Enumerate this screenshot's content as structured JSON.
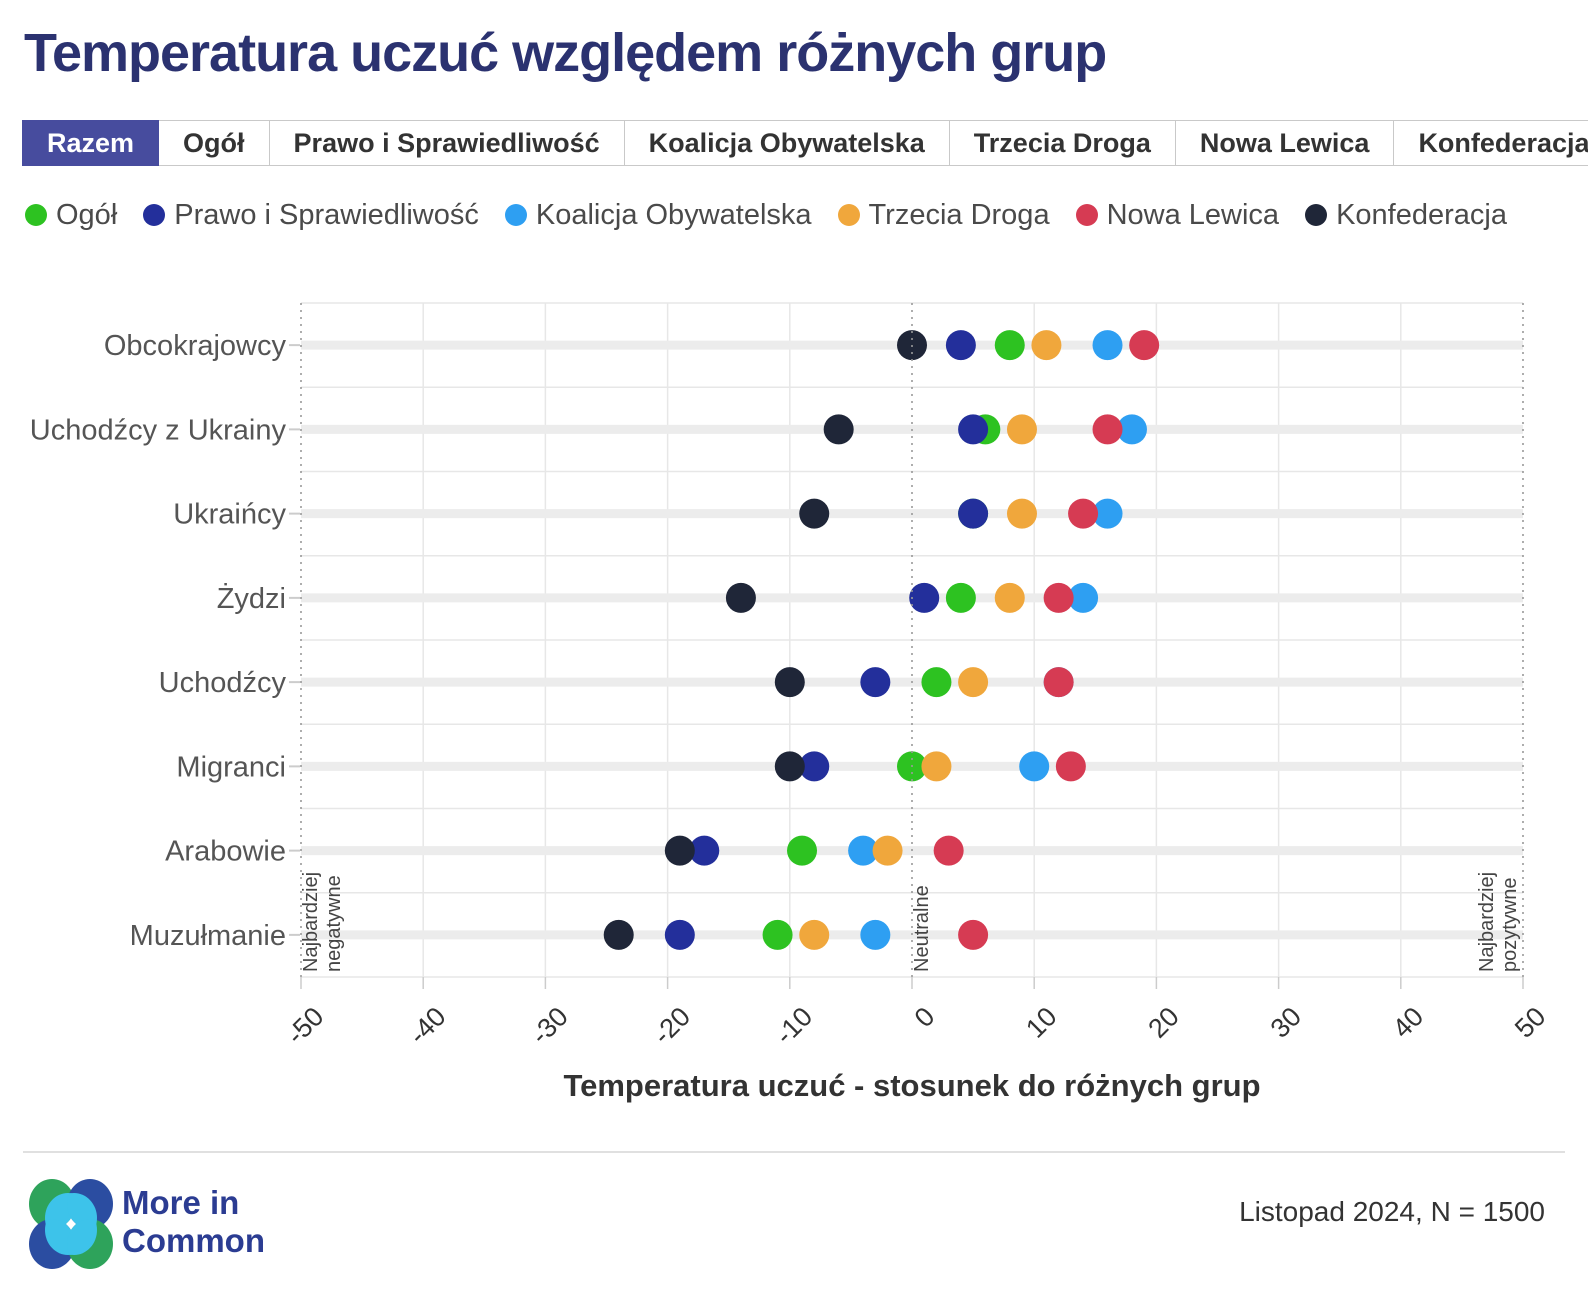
{
  "title": "Temperatura uczuć względem różnych grup",
  "colors": {
    "title": "#2b3270",
    "selected_tab_bg": "#474c9e",
    "selected_tab_text": "#ffffff",
    "grid": "#e7e7e7",
    "row_band": "#ececec",
    "dashed_line": "#999999",
    "axis_text": "#333333",
    "category_text": "#555555"
  },
  "tabs": {
    "selected_index": 0,
    "items": [
      {
        "label": "Razem"
      },
      {
        "label": "Ogół"
      },
      {
        "label": "Prawo i Sprawiedliwość"
      },
      {
        "label": "Koalicja Obywatelska"
      },
      {
        "label": "Trzecia Droga"
      },
      {
        "label": "Nowa Lewica"
      },
      {
        "label": "Konfederacja"
      }
    ]
  },
  "chart_data": {
    "type": "scatter",
    "title": "Temperatura uczuć względem różnych grup",
    "xlabel": "Temperatura uczuć - stosunek do różnych grup",
    "xlim": [
      -50,
      50
    ],
    "xticks": [
      -50,
      -40,
      -30,
      -20,
      -10,
      0,
      10,
      20,
      30,
      40,
      50
    ],
    "grid": true,
    "legend_position": "top",
    "categories": [
      "Obcokrajowcy",
      "Uchodźcy z Ukrainy",
      "Ukraińcy",
      "Żydzi",
      "Uchodźcy",
      "Migranci",
      "Arabowie",
      "Muzułmanie"
    ],
    "series": [
      {
        "name": "Ogół",
        "color": "#2dc221",
        "values": [
          8,
          6,
          5,
          4,
          2,
          0,
          -9,
          -11
        ]
      },
      {
        "name": "Prawo i Sprawiedliwość",
        "color": "#232f9b",
        "values": [
          4,
          5,
          5,
          1,
          -3,
          -8,
          -17,
          -19
        ]
      },
      {
        "name": "Koalicja Obywatelska",
        "color": "#2e9ff2",
        "values": [
          16,
          18,
          16,
          14,
          12,
          10,
          -4,
          -3
        ]
      },
      {
        "name": "Trzecia Droga",
        "color": "#f0a73c",
        "values": [
          11,
          9,
          9,
          8,
          5,
          2,
          -2,
          -8
        ]
      },
      {
        "name": "Nowa Lewica",
        "color": "#d63b53",
        "values": [
          19,
          16,
          14,
          12,
          12,
          13,
          3,
          5
        ]
      },
      {
        "name": "Konfederacja",
        "color": "#1f2638",
        "values": [
          0,
          -6,
          -8,
          -14,
          -10,
          -10,
          -19,
          -24
        ]
      }
    ],
    "annotations": {
      "left": {
        "lines": [
          "Najbardziej",
          "negatywne"
        ]
      },
      "center": {
        "lines": [
          "Neutralne"
        ]
      },
      "right": {
        "lines": [
          "Najbardziej",
          "pozytywne"
        ]
      }
    }
  },
  "footer": {
    "logo_line1": "More in",
    "logo_line2": "Common",
    "note": "Listopad 2024, N = 1500"
  }
}
